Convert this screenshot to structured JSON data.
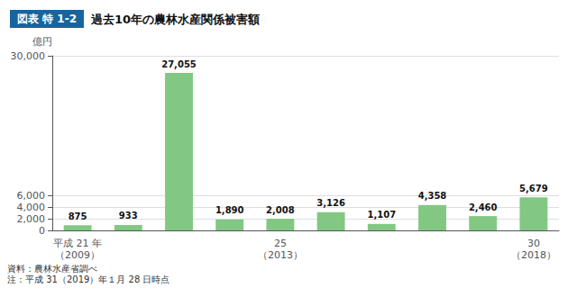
{
  "chart_data": {
    "type": "bar",
    "title": "過去10年の農林水産関係被害額",
    "subtitle": "図表 特 1-2",
    "ylabel": "億円",
    "categories": [
      "平成 21 年\n（2009）",
      null,
      null,
      null,
      "25\n（2013）",
      null,
      null,
      null,
      null,
      "30\n（2018）"
    ],
    "values": [
      875,
      933,
      27055,
      1890,
      2008,
      3126,
      1107,
      4358,
      2460,
      5679
    ],
    "value_labels": [
      "875",
      "933",
      "27,055",
      "1,890",
      "2,008",
      "3,126",
      "1,107",
      "4,358",
      "2,460",
      "5,679"
    ],
    "color": "#82c882",
    "ylim": [
      0,
      30000
    ],
    "yticks": [
      0,
      {
        "value": 2000,
        "label": "2,000"
      },
      {
        "value": 4000,
        "label": "4,000"
      },
      {
        "value": 6000,
        "label": "6,000"
      },
      {
        "value": 30000,
        "label": "30,000"
      }
    ],
    "grid": true,
    "data_labels": true,
    "annotations": [
      "資料：農林水産省調べ\n注：平成 31（2019）年１月 28 日時点"
    ]
  }
}
